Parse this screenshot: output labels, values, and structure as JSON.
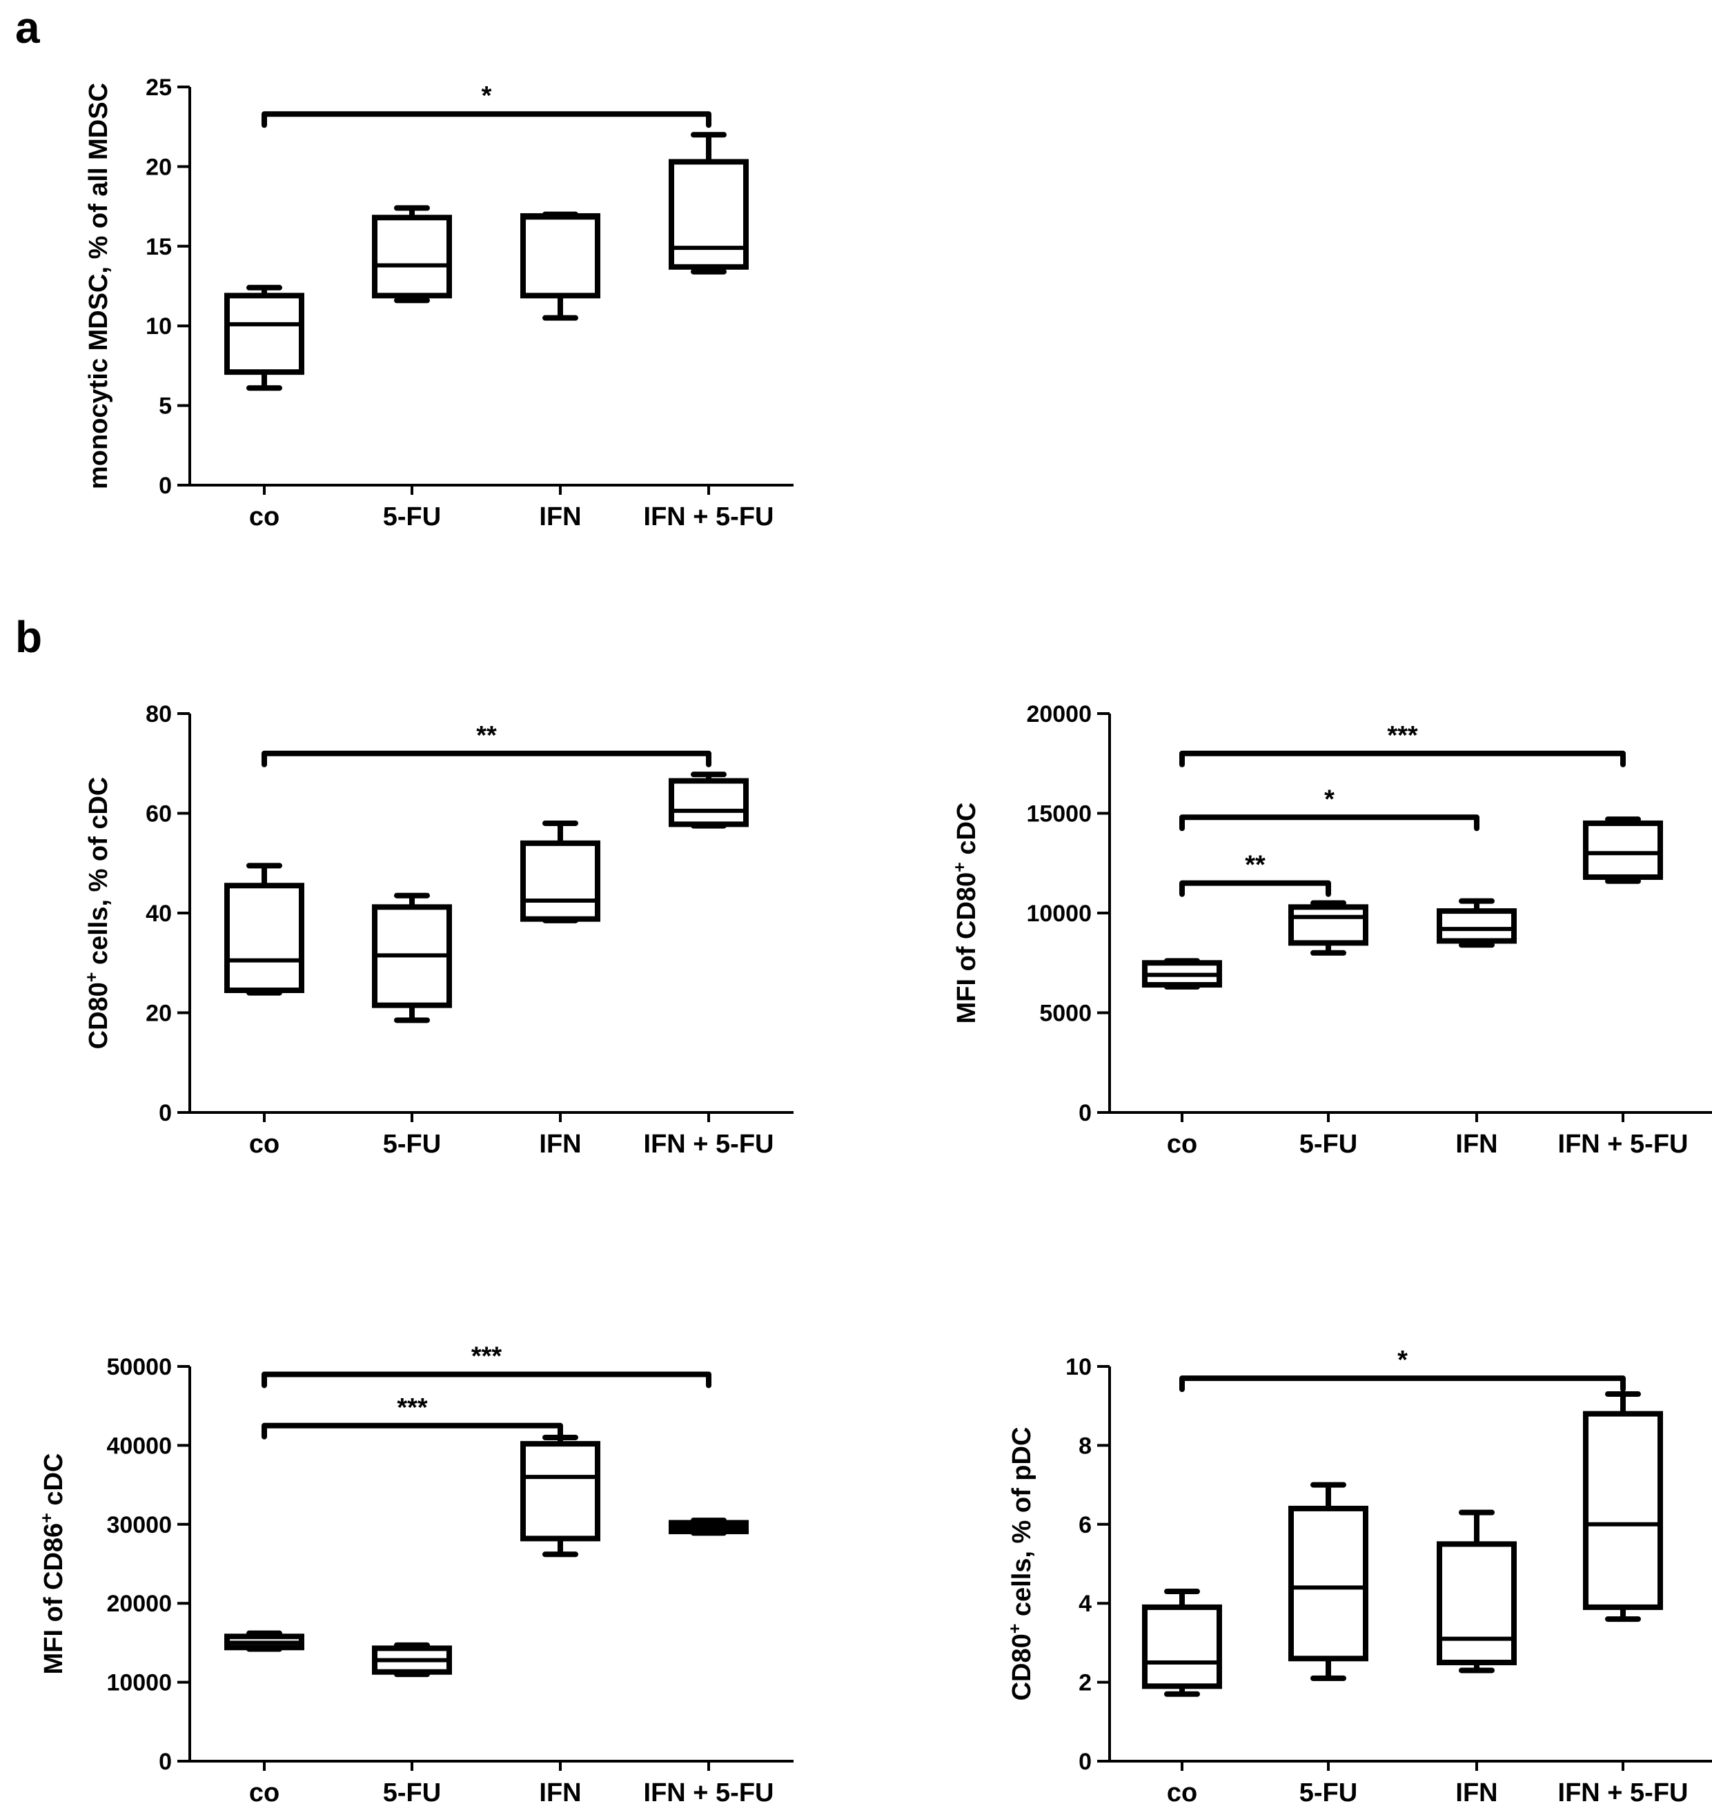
{
  "panels": {
    "a": "a",
    "b": "b"
  },
  "colors": {
    "ink": "#000000",
    "background": "#ffffff"
  },
  "chart_data": [
    {
      "type": "boxplot",
      "panel": "a",
      "categories": [
        "co",
        "5-FU",
        "IFN",
        "IFN + 5-FU"
      ],
      "ylabel": "monocytic MDSC, % of all MDSC",
      "ylim": [
        0,
        25
      ],
      "yticks": [
        0,
        5,
        10,
        15,
        20,
        25
      ],
      "ytick_labels": [
        "0",
        "5",
        "10",
        "15",
        "20",
        "25"
      ],
      "boxes": [
        {
          "min": 6.1,
          "q1": 7.1,
          "median": 10.1,
          "q3": 11.9,
          "max": 12.4
        },
        {
          "min": 11.6,
          "q1": 11.9,
          "median": 13.8,
          "q3": 16.8,
          "max": 17.4
        },
        {
          "min": 10.5,
          "q1": 11.9,
          "median": 16.8,
          "q3": 16.9,
          "max": 17.0
        },
        {
          "min": 13.4,
          "q1": 13.7,
          "median": 14.9,
          "q3": 20.3,
          "max": 22.0
        }
      ],
      "significance": [
        {
          "from": 0,
          "to": 3,
          "label": "*",
          "level": 23.3
        }
      ]
    },
    {
      "type": "boxplot",
      "panel": "b",
      "categories": [
        "co",
        "5-FU",
        "IFN",
        "IFN + 5-FU"
      ],
      "ylabel": "CD80⁺ cells, % of cDC",
      "ylim": [
        0,
        80
      ],
      "yticks": [
        0,
        20,
        40,
        60,
        80
      ],
      "ytick_labels": [
        "0",
        "20",
        "40",
        "60",
        "80"
      ],
      "boxes": [
        {
          "min": 24,
          "q1": 24.5,
          "median": 30.5,
          "q3": 45.5,
          "max": 49.5
        },
        {
          "min": 18.5,
          "q1": 21.5,
          "median": 31.5,
          "q3": 41.2,
          "max": 43.5
        },
        {
          "min": 38.5,
          "q1": 38.8,
          "median": 42.5,
          "q3": 54,
          "max": 58
        },
        {
          "min": 57.5,
          "q1": 57.8,
          "median": 60.5,
          "q3": 66.5,
          "max": 67.8
        }
      ],
      "significance": [
        {
          "from": 0,
          "to": 3,
          "label": "**",
          "level": 72
        }
      ]
    },
    {
      "type": "boxplot",
      "panel": "b",
      "categories": [
        "co",
        "5-FU",
        "IFN",
        "IFN + 5-FU"
      ],
      "ylabel": "MFI of CD80⁺ cDC",
      "ylim": [
        0,
        20000
      ],
      "yticks": [
        0,
        5000,
        10000,
        15000,
        20000
      ],
      "ytick_labels": [
        "0",
        "5000",
        "10000",
        "15000",
        "20000"
      ],
      "boxes": [
        {
          "min": 6300,
          "q1": 6400,
          "median": 6900,
          "q3": 7500,
          "max": 7600
        },
        {
          "min": 8000,
          "q1": 8500,
          "median": 9800,
          "q3": 10300,
          "max": 10500
        },
        {
          "min": 8400,
          "q1": 8600,
          "median": 9200,
          "q3": 10100,
          "max": 10600
        },
        {
          "min": 11600,
          "q1": 11800,
          "median": 13000,
          "q3": 14500,
          "max": 14700
        }
      ],
      "significance": [
        {
          "from": 0,
          "to": 1,
          "label": "**",
          "level": 11500
        },
        {
          "from": 0,
          "to": 2,
          "label": "*",
          "level": 14800
        },
        {
          "from": 0,
          "to": 3,
          "label": "***",
          "level": 18000
        }
      ]
    },
    {
      "type": "boxplot",
      "panel": "b",
      "categories": [
        "co",
        "5-FU",
        "IFN",
        "IFN + 5-FU"
      ],
      "ylabel": "MFI of CD86⁺ cDC",
      "ylim": [
        0,
        50000
      ],
      "yticks": [
        0,
        10000,
        20000,
        30000,
        40000,
        50000
      ],
      "ytick_labels": [
        "0",
        "10000",
        "20000",
        "30000",
        "40000",
        "50000"
      ],
      "boxes": [
        {
          "min": 14200,
          "q1": 14400,
          "median": 15000,
          "q3": 15800,
          "max": 16200
        },
        {
          "min": 11000,
          "q1": 11300,
          "median": 12800,
          "q3": 14300,
          "max": 14700
        },
        {
          "min": 26200,
          "q1": 28200,
          "median": 36000,
          "q3": 40200,
          "max": 41000
        },
        {
          "min": 28900,
          "q1": 29100,
          "median": 29600,
          "q3": 30200,
          "max": 30500
        }
      ],
      "significance": [
        {
          "from": 0,
          "to": 2,
          "label": "***",
          "level": 42500
        },
        {
          "from": 0,
          "to": 3,
          "label": "***",
          "level": 49000
        }
      ]
    },
    {
      "type": "boxplot",
      "panel": "b",
      "categories": [
        "co",
        "5-FU",
        "IFN",
        "IFN + 5-FU"
      ],
      "ylabel": "CD80⁺ cells, % of pDC",
      "ylim": [
        0,
        10
      ],
      "yticks": [
        0,
        2,
        4,
        6,
        8,
        10
      ],
      "ytick_labels": [
        "0",
        "2",
        "4",
        "6",
        "8",
        "10"
      ],
      "boxes": [
        {
          "min": 1.7,
          "q1": 1.9,
          "median": 2.5,
          "q3": 3.9,
          "max": 4.3
        },
        {
          "min": 2.1,
          "q1": 2.6,
          "median": 4.4,
          "q3": 6.4,
          "max": 7.0
        },
        {
          "min": 2.3,
          "q1": 2.5,
          "median": 3.1,
          "q3": 5.5,
          "max": 6.3
        },
        {
          "min": 3.6,
          "q1": 3.9,
          "median": 6.0,
          "q3": 8.8,
          "max": 9.3
        }
      ],
      "significance": [
        {
          "from": 0,
          "to": 3,
          "label": "*",
          "level": 9.7
        }
      ]
    }
  ]
}
